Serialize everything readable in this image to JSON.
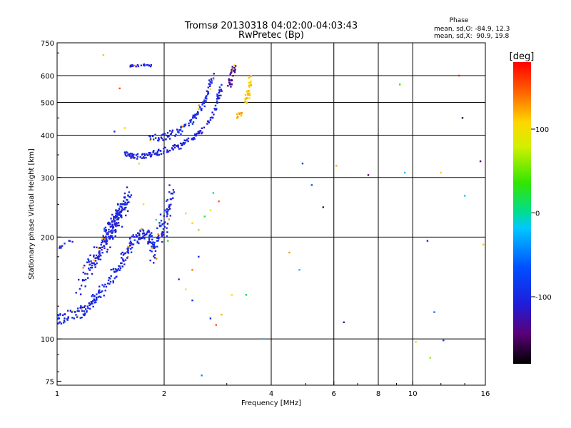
{
  "chart_data": {
    "type": "scatter",
    "title": "Tromsø 20130318 04:02:00-04:03:43",
    "subtitle": "RwPretec (Bp)",
    "xlabel": "Frequency [MHz]",
    "ylabel": "Stationary phase Virtual Height [km]",
    "x_scale": "log",
    "y_scale": "log",
    "xlim": [
      1,
      16
    ],
    "ylim": [
      73,
      750
    ],
    "x_ticks": [
      1,
      2,
      4,
      6,
      8,
      10,
      16
    ],
    "y_ticks": [
      75,
      100,
      200,
      300,
      400,
      500,
      600,
      750
    ],
    "x_gridlines": [
      2,
      4,
      6,
      8,
      10
    ],
    "y_gridlines": [
      100,
      200,
      300,
      400,
      500,
      600
    ],
    "grid": true,
    "phase_stats": {
      "heading": "Phase",
      "line_o": "mean, sd,O: -84.9, 12.3",
      "line_x": "mean, sd,X:  90.9, 19.8"
    },
    "colorbar": {
      "label": "[deg]",
      "range": [
        -180,
        180
      ],
      "ticks": [
        100,
        0,
        -100
      ],
      "tick_labels": [
        "100",
        "0",
        "-100"
      ],
      "placement": "right"
    },
    "trace_segments": [
      {
        "x": [
          1.0,
          1.1,
          1.2,
          1.3,
          1.45,
          1.55,
          1.65,
          1.75,
          1.85
        ],
        "y": [
          115,
          118,
          122,
          135,
          155,
          175,
          195,
          205,
          195
        ],
        "spread": 0.05,
        "n": 220,
        "phase": -100
      },
      {
        "x": [
          1.15,
          1.25,
          1.35,
          1.45,
          1.55
        ],
        "y": [
          140,
          165,
          190,
          215,
          250
        ],
        "spread": 0.07,
        "n": 140,
        "phase": -105
      },
      {
        "x": [
          1.3,
          1.4,
          1.5,
          1.6
        ],
        "y": [
          175,
          210,
          240,
          270
        ],
        "spread": 0.05,
        "n": 100,
        "phase": -100
      },
      {
        "x": [
          1.55,
          1.65,
          1.8,
          2.0,
          2.2,
          2.4,
          2.6,
          2.8,
          2.9
        ],
        "y": [
          355,
          345,
          350,
          360,
          370,
          390,
          420,
          480,
          560
        ],
        "spread": 0.025,
        "n": 160,
        "phase": -105
      },
      {
        "x": [
          1.8,
          2.0,
          2.2,
          2.4,
          2.6,
          2.75
        ],
        "y": [
          390,
          395,
          410,
          440,
          500,
          600
        ],
        "spread": 0.03,
        "n": 110,
        "phase": -100
      },
      {
        "x": [
          2.0,
          2.05,
          2.1
        ],
        "y": [
          200,
          240,
          280
        ],
        "spread": 0.05,
        "n": 40,
        "phase": -100
      },
      {
        "x": [
          1.85,
          1.9,
          2.0
        ],
        "y": [
          170,
          200,
          230
        ],
        "spread": 0.06,
        "n": 45,
        "phase": -95
      },
      {
        "x": [
          1.6,
          1.7,
          1.8,
          1.85
        ],
        "y": [
          640,
          643,
          645,
          640
        ],
        "spread": 0.008,
        "n": 22,
        "phase": -105
      },
      {
        "x": [
          3.05,
          3.1,
          3.15
        ],
        "y": [
          560,
          600,
          640
        ],
        "spread": 0.03,
        "n": 30,
        "phase": -135
      },
      {
        "x": [
          3.4,
          3.45,
          3.5
        ],
        "y": [
          500,
          540,
          590
        ],
        "spread": 0.03,
        "n": 35,
        "phase": 110
      },
      {
        "x": [
          3.2,
          3.35
        ],
        "y": [
          455,
          470
        ],
        "spread": 0.02,
        "n": 10,
        "phase": 115
      },
      {
        "x": [
          1.0,
          1.05,
          1.1
        ],
        "y": [
          185,
          190,
          195
        ],
        "spread": 0.02,
        "n": 8,
        "phase": -100
      }
    ],
    "points": [
      {
        "x": 1.35,
        "y": 690,
        "phase": 115
      },
      {
        "x": 1.5,
        "y": 550,
        "phase": 150
      },
      {
        "x": 1.55,
        "y": 420,
        "phase": 110
      },
      {
        "x": 1.45,
        "y": 410,
        "phase": -100
      },
      {
        "x": 1.7,
        "y": 330,
        "phase": 100
      },
      {
        "x": 1.75,
        "y": 250,
        "phase": 90
      },
      {
        "x": 1.9,
        "y": 225,
        "phase": 40
      },
      {
        "x": 2.05,
        "y": 195,
        "phase": 30
      },
      {
        "x": 2.3,
        "y": 235,
        "phase": 110
      },
      {
        "x": 2.4,
        "y": 220,
        "phase": 100
      },
      {
        "x": 2.5,
        "y": 210,
        "phase": 60
      },
      {
        "x": 2.6,
        "y": 230,
        "phase": 20
      },
      {
        "x": 2.7,
        "y": 240,
        "phase": 90
      },
      {
        "x": 2.75,
        "y": 270,
        "phase": 10
      },
      {
        "x": 2.85,
        "y": 255,
        "phase": 150
      },
      {
        "x": 2.5,
        "y": 175,
        "phase": -100
      },
      {
        "x": 2.4,
        "y": 160,
        "phase": 140
      },
      {
        "x": 2.3,
        "y": 140,
        "phase": 100
      },
      {
        "x": 2.2,
        "y": 150,
        "phase": -100
      },
      {
        "x": 2.4,
        "y": 130,
        "phase": -100
      },
      {
        "x": 2.7,
        "y": 115,
        "phase": -100
      },
      {
        "x": 2.8,
        "y": 110,
        "phase": 150
      },
      {
        "x": 2.9,
        "y": 118,
        "phase": 120
      },
      {
        "x": 3.1,
        "y": 135,
        "phase": 105
      },
      {
        "x": 3.4,
        "y": 135,
        "phase": 15
      },
      {
        "x": 2.55,
        "y": 78,
        "phase": -40
      },
      {
        "x": 3.8,
        "y": 100,
        "phase": -20
      },
      {
        "x": 4.5,
        "y": 180,
        "phase": 130
      },
      {
        "x": 4.8,
        "y": 160,
        "phase": -20
      },
      {
        "x": 4.9,
        "y": 330,
        "phase": -80
      },
      {
        "x": 5.2,
        "y": 285,
        "phase": -60
      },
      {
        "x": 5.6,
        "y": 245,
        "phase": -150
      },
      {
        "x": 6.1,
        "y": 325,
        "phase": 120
      },
      {
        "x": 6.4,
        "y": 112,
        "phase": -130
      },
      {
        "x": 7.5,
        "y": 305,
        "phase": -140
      },
      {
        "x": 9.2,
        "y": 565,
        "phase": 40
      },
      {
        "x": 9.5,
        "y": 310,
        "phase": -20
      },
      {
        "x": 10.2,
        "y": 98,
        "phase": 100
      },
      {
        "x": 11.0,
        "y": 195,
        "phase": -120
      },
      {
        "x": 11.2,
        "y": 88,
        "phase": 60
      },
      {
        "x": 11.5,
        "y": 120,
        "phase": -50
      },
      {
        "x": 12.0,
        "y": 310,
        "phase": 110
      },
      {
        "x": 12.2,
        "y": 99,
        "phase": -80
      },
      {
        "x": 13.5,
        "y": 600,
        "phase": 170
      },
      {
        "x": 13.8,
        "y": 450,
        "phase": -160
      },
      {
        "x": 14.0,
        "y": 265,
        "phase": -20
      },
      {
        "x": 15.5,
        "y": 335,
        "phase": -150
      },
      {
        "x": 15.8,
        "y": 190,
        "phase": 115
      }
    ]
  }
}
